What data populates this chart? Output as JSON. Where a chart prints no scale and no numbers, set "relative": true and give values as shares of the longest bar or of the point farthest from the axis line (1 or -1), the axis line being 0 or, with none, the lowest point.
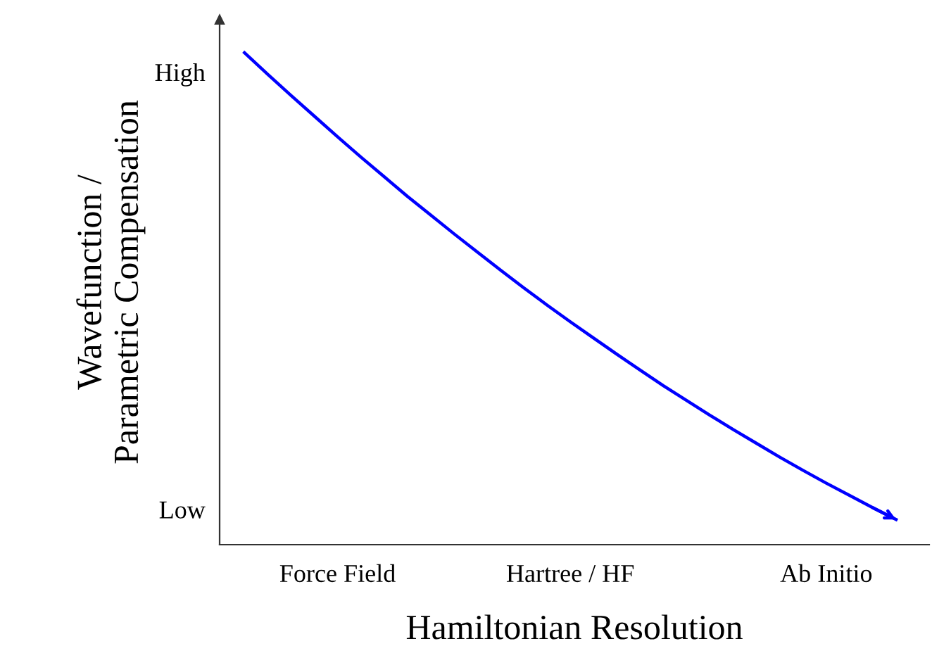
{
  "chart_data": {
    "type": "line",
    "xlabel": "Hamiltonian Resolution",
    "ylabel": "Wavefunction /\nParametric Compensation",
    "relative": true,
    "categories": [
      null,
      null,
      null,
      null,
      "Force Field",
      null,
      null,
      null,
      null,
      null,
      null,
      null,
      null,
      null,
      "Hartree / HF",
      null,
      null,
      null,
      null,
      null,
      null,
      null,
      null,
      null,
      null,
      "Ab Initio",
      null,
      null,
      null
    ],
    "series": [
      {
        "color": "#0000ff",
        "values": [
          1.0,
          0.956,
          0.913,
          0.871,
          0.829,
          0.788,
          0.748,
          0.708,
          0.67,
          0.632,
          0.595,
          0.558,
          0.522,
          0.487,
          0.453,
          0.42,
          0.387,
          0.355,
          0.323,
          0.293,
          0.263,
          0.234,
          0.206,
          0.178,
          0.151,
          0.125,
          0.1,
          0.075,
          0.051
        ]
      }
    ],
    "annotations": [
      "High",
      "Low"
    ],
    "grid": false,
    "legend": false,
    "marker": "none",
    "line_style": "solid"
  }
}
